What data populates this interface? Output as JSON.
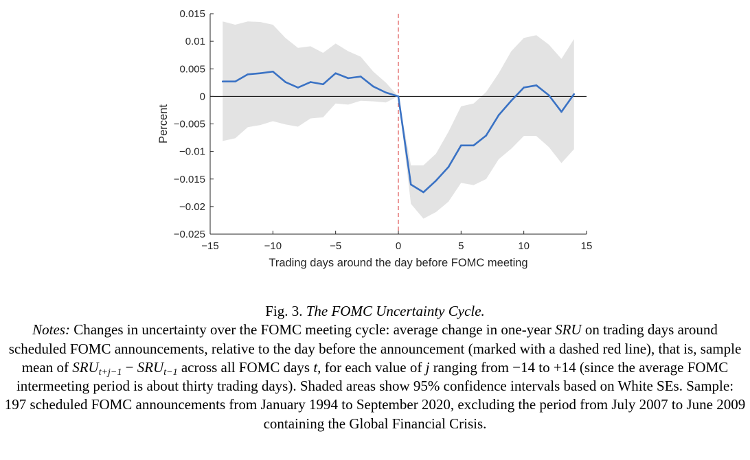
{
  "chart_data": {
    "type": "line",
    "title": "",
    "xlabel": "Trading days around the day before FOMC meeting",
    "ylabel": "Percent",
    "xlim": [
      -15,
      15
    ],
    "ylim": [
      -0.025,
      0.015
    ],
    "xticks": [
      -15,
      -10,
      -5,
      0,
      5,
      10,
      15
    ],
    "xtick_labels": [
      "−15",
      "−10",
      "−5",
      "0",
      "5",
      "10",
      "15"
    ],
    "yticks": [
      0.015,
      0.01,
      0.005,
      0,
      -0.005,
      -0.01,
      -0.015,
      -0.02,
      -0.025
    ],
    "ytick_labels": [
      "0.015",
      "0.01",
      "0.005",
      "0",
      "−0.005",
      "−0.01",
      "−0.015",
      "−0.02",
      "−0.025"
    ],
    "reference_lines": {
      "y_zero": 0,
      "x_dashed_red": 0
    },
    "colors": {
      "line": "#3a72c4",
      "band": "#e3e3e3",
      "dashed": "#e06060",
      "zero_line": "#000000"
    },
    "x": [
      -14,
      -13,
      -12,
      -11,
      -10,
      -9,
      -8,
      -7,
      -6,
      -5,
      -4,
      -3,
      -2,
      -1,
      0,
      1,
      2,
      3,
      4,
      5,
      6,
      7,
      8,
      9,
      10,
      11,
      12,
      13,
      14
    ],
    "series": [
      {
        "values": [
          0.0027,
          0.0027,
          0.004,
          0.0042,
          0.0045,
          0.0026,
          0.0016,
          0.0026,
          0.0022,
          0.0042,
          0.0033,
          0.0036,
          0.0018,
          0.0007,
          0.0,
          -0.016,
          -0.0174,
          -0.0153,
          -0.0128,
          -0.0089,
          -0.0089,
          -0.0071,
          -0.0034,
          -0.0008,
          0.0016,
          0.002,
          0.0002,
          -0.0028,
          0.0004
        ]
      }
    ],
    "band_upper": [
      0.0136,
      0.013,
      0.0136,
      0.0135,
      0.013,
      0.0106,
      0.0088,
      0.0091,
      0.0079,
      0.0096,
      0.0082,
      0.0072,
      0.0045,
      0.0025,
      0.0,
      -0.0125,
      -0.0125,
      -0.0104,
      -0.0064,
      -0.0018,
      -0.0013,
      0.0008,
      0.0042,
      0.0082,
      0.0106,
      0.0111,
      0.0094,
      0.0068,
      0.0104
    ],
    "band_lower": [
      -0.0081,
      -0.0076,
      -0.0056,
      -0.0052,
      -0.0045,
      -0.0051,
      -0.0055,
      -0.004,
      -0.0038,
      -0.0013,
      -0.0015,
      -0.0008,
      -0.0009,
      -0.0011,
      0.0,
      -0.0195,
      -0.0222,
      -0.021,
      -0.0191,
      -0.0157,
      -0.0161,
      -0.015,
      -0.0114,
      -0.0095,
      -0.0072,
      -0.0072,
      -0.0092,
      -0.0121,
      -0.0096
    ]
  },
  "caption": {
    "fig_number": "Fig. 3.",
    "fig_title": "The FOMC Uncertainty Cycle.",
    "notes_label": "Notes:",
    "p1": "Changes in uncertainty over the FOMC meeting cycle: average change in one-year",
    "sru": "SRU",
    "p2": "on trading days around scheduled FOMC announcements, relative to the day before the announcement (marked with a dashed red line), that is, sample mean of",
    "sub1": "t+j−1",
    "minus": " − ",
    "sub2": "t−1",
    "p3": "across all FOMC days",
    "t": "t",
    "p4": ", for each value of",
    "j": "j",
    "p5": "ranging from −14 to +14 (since the average FOMC intermeeting period is about thirty trading days). Shaded areas show 95% confidence intervals based on White SEs. Sample: 197 scheduled FOMC announcements from January 1994 to September 2020, excluding the period from July 2007 to June 2009 containing the Global Financial Crisis."
  }
}
